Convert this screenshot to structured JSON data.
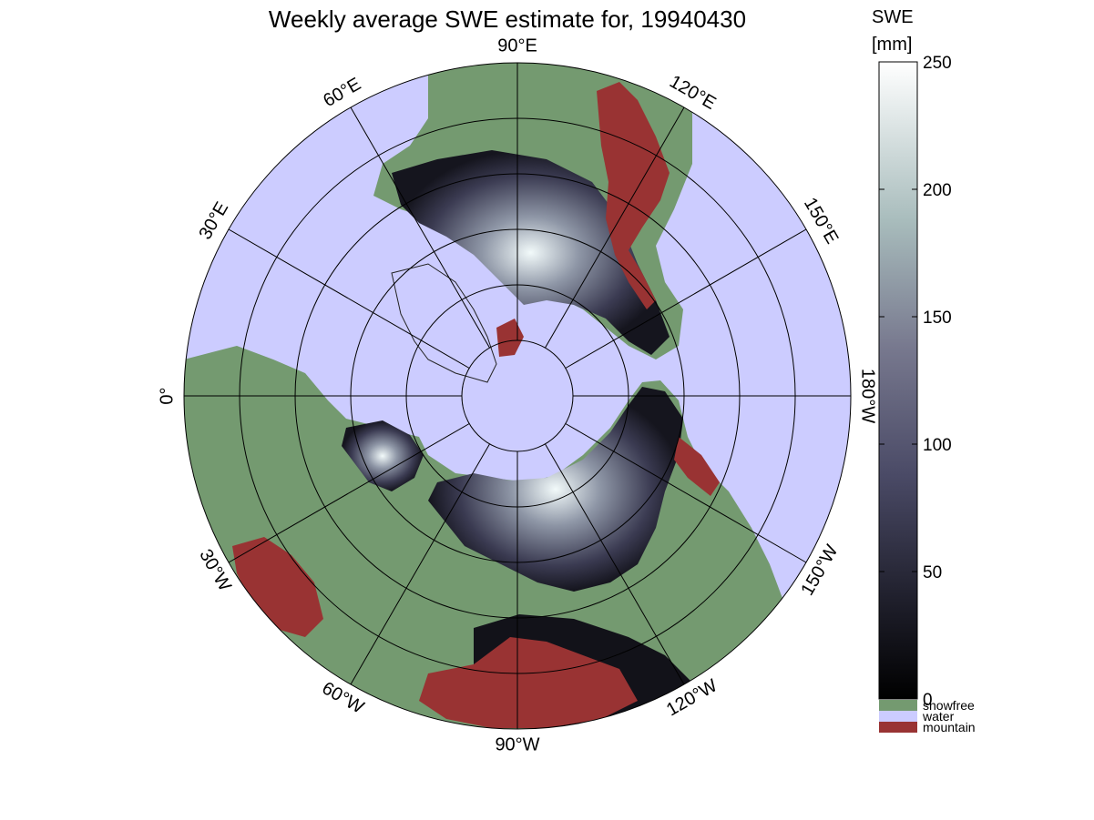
{
  "title": "Weekly average SWE estimate for, 19940430",
  "colorbar": {
    "label_line1": "SWE",
    "label_line2": "[mm]",
    "ticks": [
      "0",
      "50",
      "100",
      "150",
      "200",
      "250"
    ],
    "min": 0,
    "max": 250
  },
  "categories": [
    {
      "label": "snowfree",
      "color": "#749a70"
    },
    {
      "label": "water",
      "color": "#ccccff"
    },
    {
      "label": "mountain",
      "color": "#993333"
    }
  ],
  "colors": {
    "water": "#ccccff",
    "land": "#749a70",
    "mountain": "#993333",
    "swe_low": "#0d0d14",
    "swe_mid": "#5a5a78",
    "swe_high": "#f4fbfb"
  },
  "map": {
    "projection": "north-polar-stereographic",
    "longitude_labels": [
      {
        "text": "90°W",
        "lon": -90
      },
      {
        "text": "120°W",
        "lon": -120
      },
      {
        "text": "150°W",
        "lon": -150
      },
      {
        "text": "180°W",
        "lon": 180
      },
      {
        "text": "150°E",
        "lon": 150
      },
      {
        "text": "120°E",
        "lon": 120
      },
      {
        "text": "90°E",
        "lon": 90
      },
      {
        "text": "60°E",
        "lon": 60
      },
      {
        "text": "30°E",
        "lon": 30
      },
      {
        "text": "0°",
        "lon": 0
      },
      {
        "text": "30°W",
        "lon": -30
      },
      {
        "text": "60°W",
        "lon": -60
      }
    ],
    "latitude_circles": [
      80,
      70,
      60,
      50,
      40,
      30
    ]
  }
}
